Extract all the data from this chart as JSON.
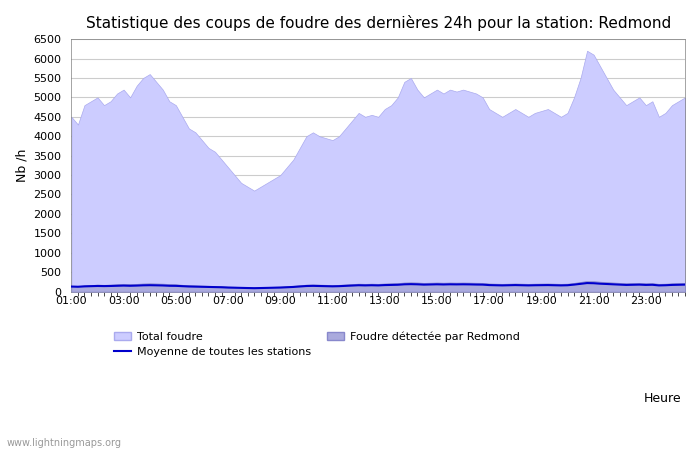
{
  "title": "Statistique des coups de foudre des dernières 24h pour la station: Redmond",
  "xlabel": "Heure",
  "ylabel": "Nb /h",
  "xlim": [
    0,
    23.5
  ],
  "ylim": [
    0,
    6500
  ],
  "yticks": [
    0,
    500,
    1000,
    1500,
    2000,
    2500,
    3000,
    3500,
    4000,
    4500,
    5000,
    5500,
    6000,
    6500
  ],
  "xtick_labels": [
    "01:00",
    "03:00",
    "05:00",
    "07:00",
    "09:00",
    "11:00",
    "13:00",
    "15:00",
    "17:00",
    "19:00",
    "21:00",
    "23:00"
  ],
  "xtick_positions": [
    0,
    2,
    4,
    6,
    8,
    10,
    12,
    14,
    16,
    18,
    20,
    22
  ],
  "bg_color": "#ffffff",
  "plot_bg_color": "#ffffff",
  "grid_color": "#cccccc",
  "total_foudre_color": "#ccccff",
  "total_foudre_edge": "#aaaaee",
  "redmond_color": "#aaaadd",
  "redmond_edge": "#8888cc",
  "moyenne_color": "#0000cc",
  "watermark": "www.lightningmaps.org",
  "hours": [
    0,
    0.25,
    0.5,
    0.75,
    1.0,
    1.25,
    1.5,
    1.75,
    2.0,
    2.25,
    2.5,
    2.75,
    3.0,
    3.25,
    3.5,
    3.75,
    4.0,
    4.25,
    4.5,
    4.75,
    5.0,
    5.25,
    5.5,
    5.75,
    6.0,
    6.25,
    6.5,
    6.75,
    7.0,
    7.25,
    7.5,
    7.75,
    8.0,
    8.25,
    8.5,
    8.75,
    9.0,
    9.25,
    9.5,
    9.75,
    10.0,
    10.25,
    10.5,
    10.75,
    11.0,
    11.25,
    11.5,
    11.75,
    12.0,
    12.25,
    12.5,
    12.75,
    13.0,
    13.25,
    13.5,
    13.75,
    14.0,
    14.25,
    14.5,
    14.75,
    15.0,
    15.25,
    15.5,
    15.75,
    16.0,
    16.25,
    16.5,
    16.75,
    17.0,
    17.25,
    17.5,
    17.75,
    18.0,
    18.25,
    18.5,
    18.75,
    19.0,
    19.25,
    19.5,
    19.75,
    20.0,
    20.25,
    20.5,
    20.75,
    21.0,
    21.25,
    21.5,
    21.75,
    22.0,
    22.25,
    22.5,
    22.75,
    23.0,
    23.25,
    23.5
  ],
  "total_foudre": [
    4500,
    4300,
    4800,
    4900,
    5000,
    4800,
    4900,
    5100,
    5200,
    5000,
    5300,
    5500,
    5600,
    5400,
    5200,
    4900,
    4800,
    4500,
    4200,
    4100,
    3900,
    3700,
    3600,
    3400,
    3200,
    3000,
    2800,
    2700,
    2600,
    2700,
    2800,
    2900,
    3000,
    3200,
    3400,
    3700,
    4000,
    4100,
    4000,
    3950,
    3900,
    4000,
    4200,
    4400,
    4600,
    4500,
    4550,
    4500,
    4700,
    4800,
    5000,
    5400,
    5500,
    5200,
    5000,
    5100,
    5200,
    5100,
    5200,
    5150,
    5200,
    5150,
    5100,
    5000,
    4700,
    4600,
    4500,
    4600,
    4700,
    4600,
    4500,
    4600,
    4650,
    4700,
    4600,
    4500,
    4600,
    5000,
    5500,
    6200,
    6100,
    5800,
    5500,
    5200,
    5000,
    4800,
    4900,
    5000,
    4800,
    4900,
    4500,
    4600,
    4800,
    4900,
    5000
  ],
  "redmond": [
    150,
    140,
    160,
    170,
    180,
    175,
    180,
    190,
    200,
    195,
    200,
    210,
    215,
    210,
    205,
    195,
    190,
    175,
    165,
    160,
    155,
    150,
    145,
    140,
    130,
    125,
    120,
    115,
    110,
    115,
    120,
    125,
    130,
    140,
    150,
    165,
    180,
    185,
    180,
    175,
    170,
    175,
    185,
    195,
    205,
    200,
    205,
    200,
    210,
    215,
    220,
    235,
    240,
    235,
    225,
    230,
    235,
    230,
    235,
    232,
    235,
    232,
    228,
    225,
    210,
    205,
    200,
    205,
    210,
    205,
    200,
    205,
    208,
    210,
    205,
    200,
    205,
    225,
    250,
    275,
    270,
    255,
    245,
    235,
    225,
    215,
    220,
    225,
    215,
    220,
    200,
    205,
    215,
    220,
    225
  ],
  "moyenne": [
    130,
    125,
    135,
    140,
    145,
    142,
    145,
    150,
    155,
    150,
    155,
    162,
    165,
    162,
    158,
    150,
    148,
    140,
    132,
    128,
    124,
    120,
    116,
    112,
    104,
    100,
    96,
    92,
    88,
    92,
    96,
    100,
    104,
    112,
    120,
    132,
    144,
    148,
    144,
    140,
    136,
    140,
    148,
    156,
    164,
    160,
    164,
    160,
    168,
    172,
    176,
    188,
    192,
    188,
    180,
    184,
    188,
    184,
    188,
    186,
    188,
    186,
    182,
    180,
    168,
    164,
    160,
    164,
    168,
    164,
    160,
    164,
    166,
    168,
    164,
    160,
    164,
    180,
    200,
    220,
    216,
    204,
    196,
    188,
    180,
    172,
    176,
    180,
    172,
    176,
    160,
    164,
    172,
    176,
    180
  ]
}
